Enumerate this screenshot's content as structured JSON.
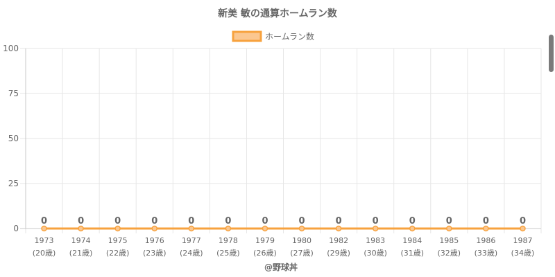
{
  "chart_data": {
    "type": "line",
    "title": "新美 敏の通算ホームラン数",
    "legend": {
      "label": "ホームラン数",
      "position": "top"
    },
    "categories": [
      "1973",
      "1974",
      "1975",
      "1976",
      "1977",
      "1978",
      "1979",
      "1980",
      "1982",
      "1983",
      "1984",
      "1985",
      "1986",
      "1987"
    ],
    "sub_labels": [
      "(20歳)",
      "(21歳)",
      "(22歳)",
      "(23歳)",
      "(24歳)",
      "(25歳)",
      "(26歳)",
      "(27歳)",
      "(29歳)",
      "(30歳)",
      "(31歳)",
      "(32歳)",
      "(33歳)",
      "(34歳)"
    ],
    "series": [
      {
        "name": "ホームラン数",
        "values": [
          0,
          0,
          0,
          0,
          0,
          0,
          0,
          0,
          0,
          0,
          0,
          0,
          0,
          0
        ]
      }
    ],
    "yticks": [
      0,
      25,
      50,
      75,
      100
    ],
    "ylim": [
      0,
      100
    ],
    "grid": true,
    "colors": {
      "line": "#f7a23e",
      "fill": "#fbc790",
      "grid": "#e6e6e6",
      "text": "#666666"
    }
  },
  "footer": {
    "credit": "@野球丼"
  }
}
